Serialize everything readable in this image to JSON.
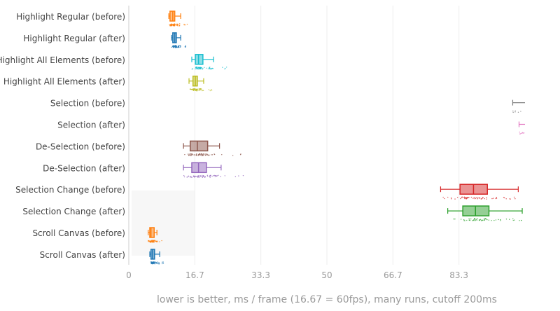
{
  "chart_data": {
    "type": "box",
    "orientation": "horizontal",
    "title": "",
    "xlabel": "lower is better, ms / frame (16.67 = 60fps), many runs, cutoff 200ms",
    "ylabel": "",
    "xlim": [
      0,
      100
    ],
    "x_ticks": [
      "0",
      "16.7",
      "33.3",
      "50",
      "66.7",
      "83.3"
    ],
    "x_tick_values": [
      0,
      16.67,
      33.33,
      50,
      66.67,
      83.33
    ],
    "grid": true,
    "legend": "none",
    "series": [
      {
        "name": "Highlight Regular (before)",
        "color": "#ff7f0e",
        "min": 10.1,
        "q1": 10.4,
        "median": 11.1,
        "q3": 11.6,
        "max": 13.1
      },
      {
        "name": "Highlight Regular (after)",
        "color": "#1f77b4",
        "min": 10.8,
        "q1": 11.1,
        "median": 11.6,
        "q3": 12.0,
        "max": 13.1
      },
      {
        "name": "Highlight All Elements (before)",
        "color": "#17becf",
        "min": 15.9,
        "q1": 16.8,
        "median": 17.6,
        "q3": 18.7,
        "max": 21.4
      },
      {
        "name": "Highlight All Elements (after)",
        "color": "#bcbd22",
        "min": 15.2,
        "q1": 16.2,
        "median": 16.8,
        "q3": 17.3,
        "max": 18.9
      },
      {
        "name": "Selection (before)",
        "color": "#7f7f7f",
        "min": 96.9,
        "q1": 101,
        "median": 103,
        "q3": 105,
        "max": 108
      },
      {
        "name": "Selection (after)",
        "color": "#e377c2",
        "min": 98.5,
        "q1": 101,
        "median": 103,
        "q3": 105,
        "max": 108
      },
      {
        "name": "De-Selection (before)",
        "color": "#8c564b",
        "min": 13.8,
        "q1": 15.5,
        "median": 17.3,
        "q3": 19.9,
        "max": 22.9
      },
      {
        "name": "De-Selection (after)",
        "color": "#9467bd",
        "min": 13.8,
        "q1": 15.9,
        "median": 17.6,
        "q3": 19.6,
        "max": 23.3
      },
      {
        "name": "Selection Change (before)",
        "color": "#d62728",
        "min": 78.7,
        "q1": 83.6,
        "median": 87.0,
        "q3": 90.5,
        "max": 98.3
      },
      {
        "name": "Selection Change (after)",
        "color": "#2ca02c",
        "min": 80.5,
        "q1": 84.3,
        "median": 87.5,
        "q3": 90.9,
        "max": 99.3
      },
      {
        "name": "Scroll Canvas (before)",
        "color": "#ff7f0e",
        "min": 4.9,
        "q1": 5.3,
        "median": 5.6,
        "q3": 6.4,
        "max": 7.1
      },
      {
        "name": "Scroll Canvas (after)",
        "color": "#1f77b4",
        "min": 5.3,
        "q1": 5.6,
        "median": 6.0,
        "q3": 6.5,
        "max": 7.8
      }
    ]
  }
}
